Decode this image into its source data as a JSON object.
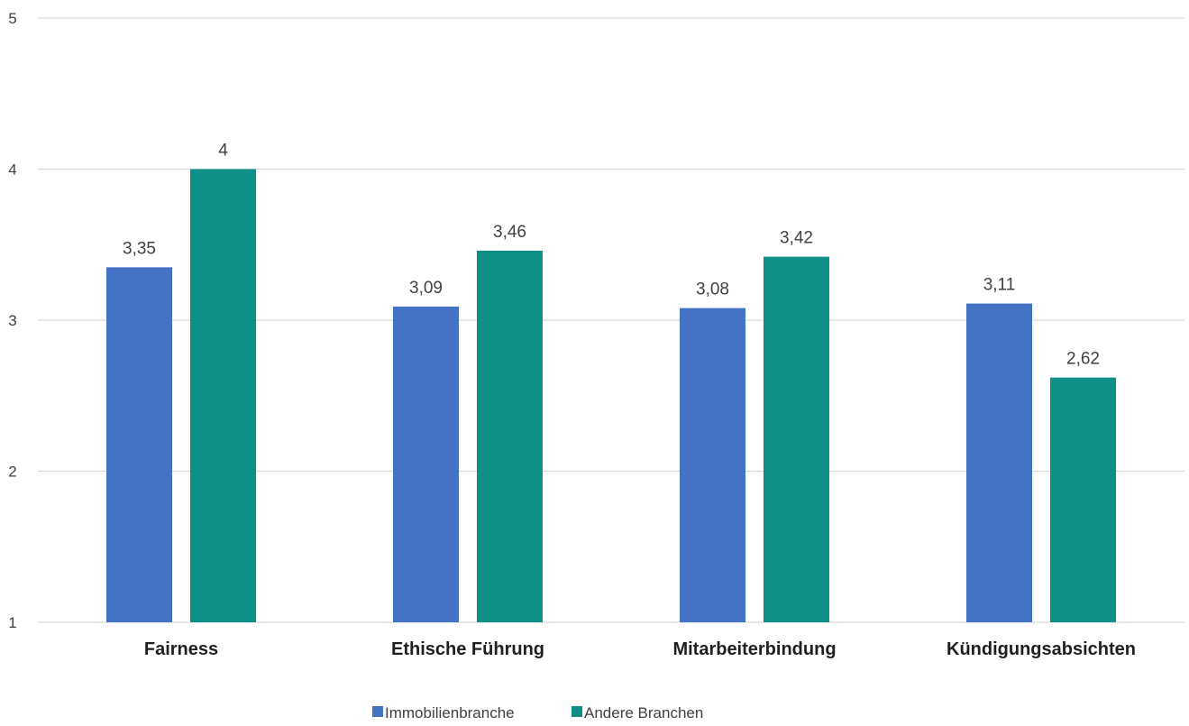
{
  "chart_data": {
    "type": "bar",
    "categories": [
      "Fairness",
      "Ethische Führung",
      "Mitarbeiterbindung",
      "Kündigungsabsichten"
    ],
    "series": [
      {
        "name": "Immobilienbranche",
        "values": [
          3.35,
          3.09,
          3.08,
          3.11
        ],
        "labels": [
          "3,35",
          "3,09",
          "3,08",
          "3,11"
        ]
      },
      {
        "name": "Andere Branchen",
        "values": [
          4,
          3.46,
          3.42,
          2.62
        ],
        "labels": [
          "4",
          "3,46",
          "3,42",
          "2,62"
        ]
      }
    ],
    "yticks": [
      "1",
      "2",
      "3",
      "4",
      "5"
    ],
    "ylim": [
      1,
      5
    ],
    "grid": true,
    "legend_position": "bottom",
    "colors": [
      "#4472C4",
      "#0E8F87"
    ],
    "gridline_color": "#D9D9D9",
    "text_color": "#404040",
    "category_label_color": "#1F1F1F"
  }
}
